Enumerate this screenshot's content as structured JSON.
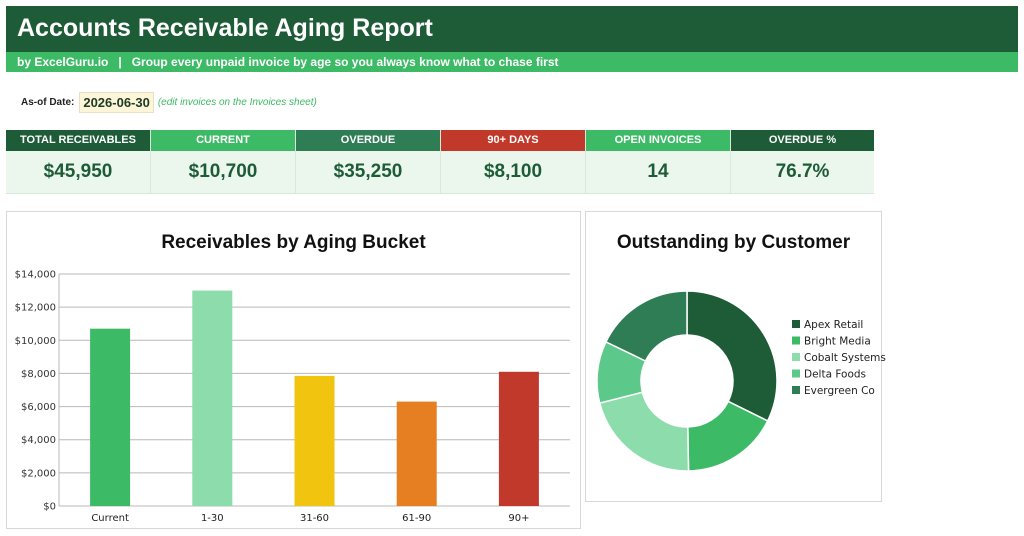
{
  "header": {
    "title": "Accounts Receivable Aging Report",
    "subtitle": "by ExcelGuru.io   |   Group every unpaid invoice by age so you always know what to chase first"
  },
  "asof": {
    "label": "As-of Date:",
    "value": "2026-06-30",
    "note": "(edit invoices on the Invoices sheet)"
  },
  "kpis": [
    {
      "label": "TOTAL RECEIVABLES",
      "value": "$45,950",
      "color": "#1e5c38"
    },
    {
      "label": "CURRENT",
      "value": "$10,700",
      "color": "#3dba66"
    },
    {
      "label": "OVERDUE",
      "value": "$35,250",
      "color": "#2f7d54"
    },
    {
      "label": "90+ DAYS",
      "value": "$8,100",
      "color": "#c0392b"
    },
    {
      "label": "OPEN INVOICES",
      "value": "14",
      "color": "#3dba66"
    },
    {
      "label": "OVERDUE %",
      "value": "76.7%",
      "color": "#1e5c38"
    }
  ],
  "chart_data": [
    {
      "type": "bar",
      "title": "Receivables by Aging Bucket",
      "categories": [
        "Current",
        "1-30",
        "31-60",
        "61-90",
        "90+"
      ],
      "values": [
        10700,
        13000,
        7850,
        6300,
        8100
      ],
      "colors": [
        "#3dba66",
        "#8ddcab",
        "#f1c40f",
        "#e67e22",
        "#c0392b"
      ],
      "ylim": [
        0,
        14000
      ],
      "yticks": [
        "$0",
        "$2,000",
        "$4,000",
        "$6,000",
        "$8,000",
        "$10,000",
        "$12,000",
        "$14,000"
      ],
      "grid": true,
      "legend": "none"
    },
    {
      "type": "pie",
      "title": "Outstanding by Customer",
      "hole": true,
      "labels": [
        "Apex Retail",
        "Bright Media",
        "Cobalt Systems",
        "Delta Foods",
        "Evergreen Co"
      ],
      "values": [
        14850,
        8000,
        9800,
        5100,
        8200
      ],
      "colors": [
        "#1e5c38",
        "#3dba66",
        "#8ddcab",
        "#5cc889",
        "#2f7d54"
      ],
      "legend": "right"
    }
  ]
}
